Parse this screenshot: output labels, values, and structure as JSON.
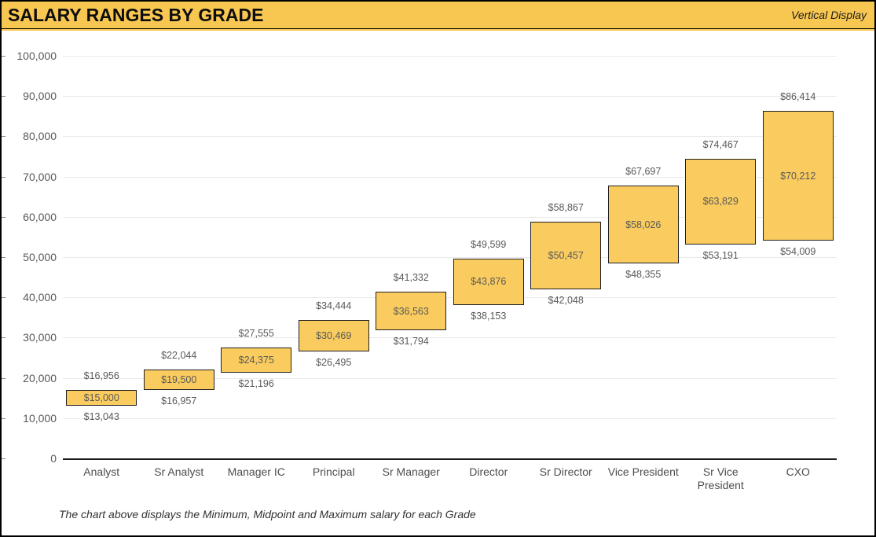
{
  "header": {
    "title": "SALARY RANGES BY GRADE",
    "subtitle": "Vertical Display"
  },
  "footnote": "The chart above displays the Minimum, Midpoint and Maximum salary for each Grade",
  "colors": {
    "gold": "#F8C752",
    "bar_fill": "#FACC5F",
    "bar_border": "#1F1F1F",
    "label_gray": "#595959",
    "grid": "#EAEAEA",
    "axis": "#1A1A1A"
  },
  "chart_data": {
    "type": "bar",
    "subtype": "floating-range-columns",
    "title": "SALARY RANGES BY GRADE",
    "categories": [
      "Analyst",
      "Sr Analyst",
      "Manager IC",
      "Principal",
      "Sr Manager",
      "Director",
      "Sr Director",
      "Vice President",
      "Sr Vice President",
      "CXO"
    ],
    "series": [
      {
        "name": "Minimum",
        "values": [
          13043,
          16957,
          21196,
          26495,
          31794,
          38153,
          42048,
          48355,
          53191,
          54009
        ]
      },
      {
        "name": "Midpoint",
        "values": [
          15000,
          19500,
          24375,
          30469,
          36563,
          43876,
          50457,
          58026,
          63829,
          70212
        ]
      },
      {
        "name": "Maximum",
        "values": [
          16956,
          22044,
          27555,
          34444,
          41332,
          49599,
          58867,
          67697,
          74467,
          86414
        ]
      }
    ],
    "value_prefix": "$",
    "ylim": [
      0,
      100000
    ],
    "ytick_step": 10000,
    "ytick_labels": [
      "0",
      "10,000",
      "20,000",
      "30,000",
      "40,000",
      "50,000",
      "60,000",
      "70,000",
      "80,000",
      "90,000",
      "100,000"
    ],
    "grid": "horizontal",
    "legend": "none",
    "description": "Each column spans Minimum to Maximum salary; Midpoint label centered inside the column"
  }
}
